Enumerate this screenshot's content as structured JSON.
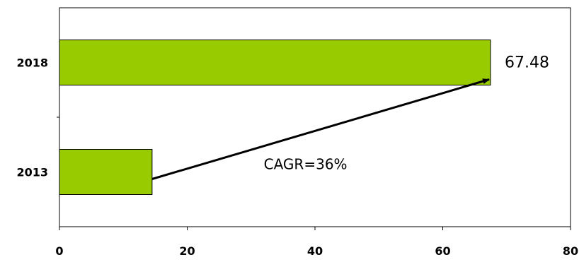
{
  "chart_data": {
    "type": "bar",
    "orientation": "horizontal",
    "categories": [
      "2013",
      "2018"
    ],
    "values": [
      14.5,
      67.48
    ],
    "data_labels": [
      "",
      "67.48"
    ],
    "xlim": [
      0,
      80
    ],
    "xticks": [
      0,
      20,
      40,
      60,
      80
    ],
    "title": "",
    "xlabel": "",
    "ylabel": "",
    "grid": false,
    "annotations": [
      {
        "text": "CAGR=36%",
        "from_category": "2013",
        "to_category": "2018",
        "arrow": true
      }
    ],
    "colors": {
      "bar_fill": "#99cc00",
      "bar_stroke": "#000000",
      "axis": "#000000"
    }
  }
}
